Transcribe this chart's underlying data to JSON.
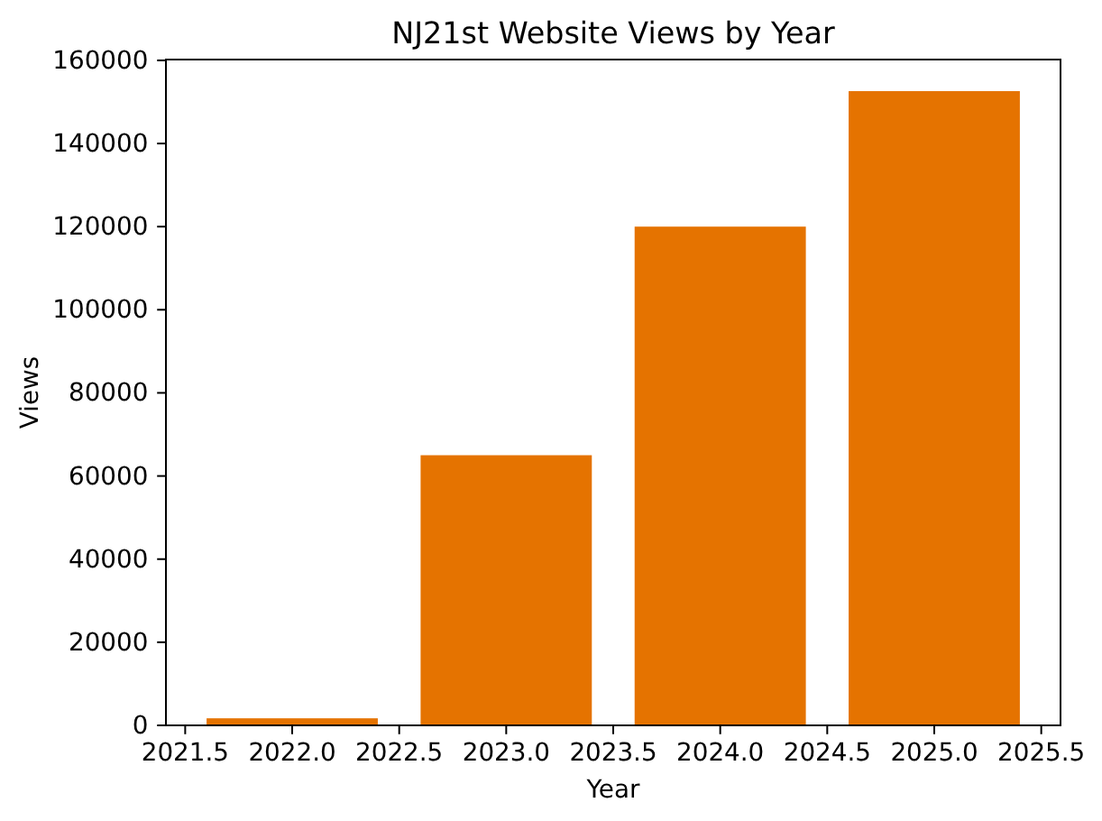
{
  "chart_data": {
    "type": "bar",
    "title": "NJ21st Website Views by Year",
    "xlabel": "Year",
    "ylabel": "Views",
    "x": [
      2022,
      2023,
      2024,
      2025
    ],
    "values": [
      1700,
      65000,
      120000,
      152600
    ],
    "color": "#e57300",
    "xlim": [
      2021.41,
      2025.59
    ],
    "xticks": [
      2021.5,
      {
        "value": 2022,
        "label": "2022.0"
      },
      2022.5,
      {
        "value": 2023,
        "label": "2023.0"
      },
      2023.5,
      {
        "value": 2024,
        "label": "2024.0"
      },
      2024.5,
      {
        "value": 2025,
        "label": "2025.0"
      },
      2025.5
    ],
    "ylim": [
      0,
      160200
    ],
    "yticks": [
      0,
      20000,
      40000,
      60000,
      80000,
      100000,
      120000,
      140000,
      160000
    ]
  }
}
